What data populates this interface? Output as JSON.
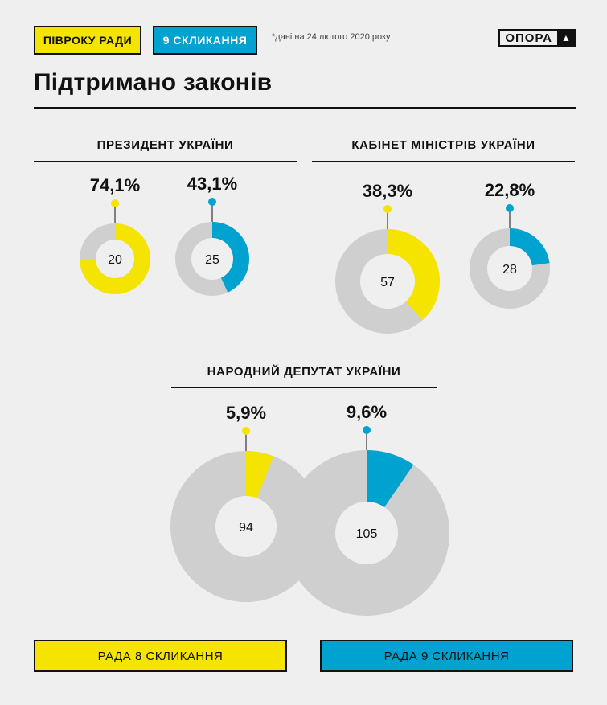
{
  "header": {
    "tag_a": "ПІВРОКУ РАДИ",
    "tag_b": "9 СКЛИКАННЯ",
    "note": "*дані на 24 лютого 2020 року",
    "logo_text": "ОПОРА",
    "logo_mark": "▲"
  },
  "title": "Підтримано законів",
  "legend": {
    "a": "РАДА 8 СКЛИКАННЯ",
    "b": "РАДА 9 СКЛИКАННЯ"
  },
  "colors": {
    "rada8": "#f4e400",
    "rada9": "#00a3cf",
    "rest": "#cfcfcf",
    "inner": "#efefef"
  },
  "chart_data": {
    "type": "pie",
    "groups": [
      {
        "name": "ПРЕЗИДЕНТ УКРАЇНИ",
        "series": [
          {
            "name": "РАДА 8 СКЛИКАННЯ",
            "percent": 74.1,
            "percent_label": "74,1%",
            "count": "20"
          },
          {
            "name": "РАДА 9 СКЛИКАННЯ",
            "percent": 43.1,
            "percent_label": "43,1%",
            "count": "25"
          }
        ]
      },
      {
        "name": "КАБІНЕТ МІНІСТРІВ УКРАЇНИ",
        "series": [
          {
            "name": "РАДА 8 СКЛИКАННЯ",
            "percent": 38.3,
            "percent_label": "38,3%",
            "count": "57"
          },
          {
            "name": "РАДА 9 СКЛИКАННЯ",
            "percent": 22.8,
            "percent_label": "22,8%",
            "count": "28"
          }
        ]
      },
      {
        "name": "НАРОДНИЙ ДЕПУТАТ УКРАЇНИ",
        "series": [
          {
            "name": "РАДА 8 СКЛИКАННЯ",
            "percent": 5.9,
            "percent_label": "5,9%",
            "count": "94"
          },
          {
            "name": "РАДА 9 СКЛИКАННЯ",
            "percent": 9.6,
            "percent_label": "9,6%",
            "count": "105"
          }
        ]
      }
    ]
  }
}
